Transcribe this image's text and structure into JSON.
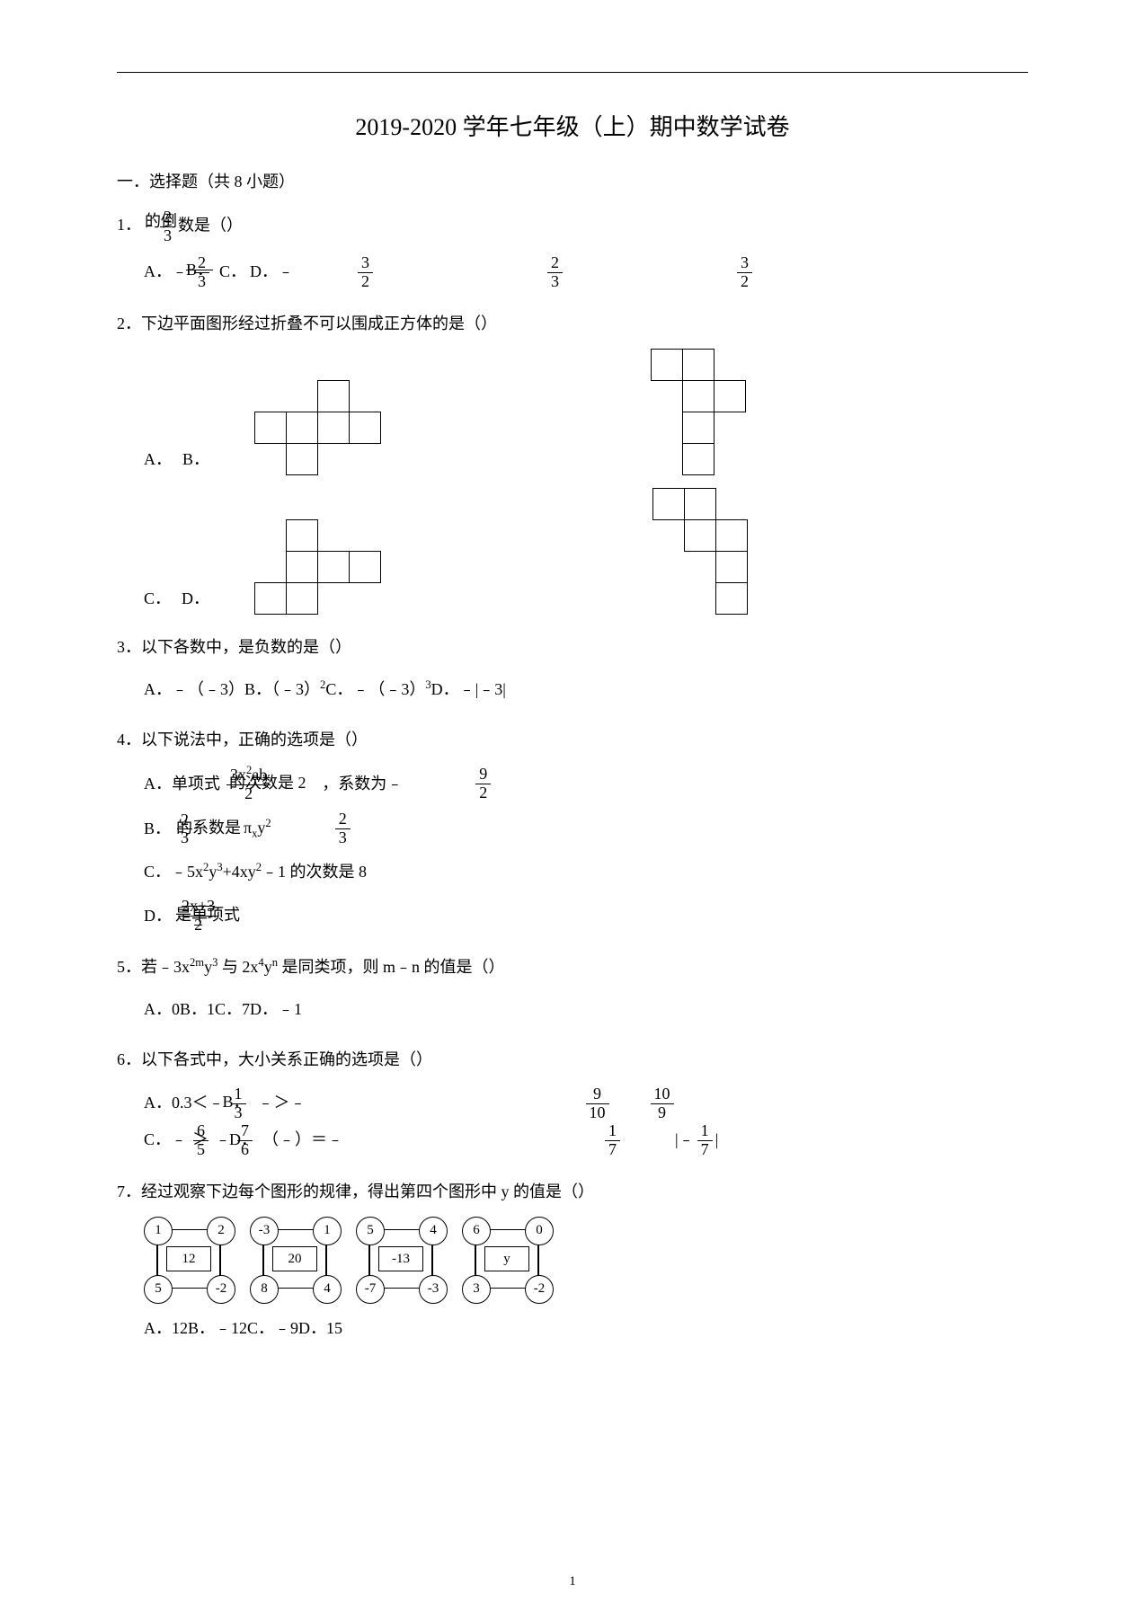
{
  "title": "2019-2020 学年七年级（上）期中数学试卷",
  "section1": "一．选择题（共 8 小题）",
  "page_number": "1",
  "q1": {
    "stem_pre": "1．﹣",
    "stem_frac_num": "2",
    "stem_frac_den": "3",
    "stem_post": "的倒数是（）",
    "optA_pre": "A．﹣",
    "optA_num": "2",
    "optA_den": "3",
    "optB": "B．",
    "optC": "C．",
    "optD": "D．﹣",
    "frac2_num": "3",
    "frac2_den": "2",
    "frac3_num": "2",
    "frac3_den": "3",
    "frac4_num": "3",
    "frac4_den": "2"
  },
  "q2": {
    "stem": "2．下边平面图形经过折叠不可以围成正方体的是（）",
    "labA": "A．",
    "labB": "B．",
    "labC": "C．",
    "labD": "D．",
    "netA": [
      [
        0,
        0,
        1,
        0
      ],
      [
        1,
        1,
        1,
        1
      ],
      [
        0,
        1,
        0,
        0
      ]
    ],
    "netB": [
      [
        1,
        1,
        0
      ],
      [
        0,
        1,
        1
      ],
      [
        0,
        1,
        0
      ],
      [
        0,
        1,
        0
      ]
    ],
    "netC": [
      [
        0,
        1,
        0,
        0
      ],
      [
        0,
        1,
        1,
        1
      ],
      [
        1,
        1,
        0,
        0
      ]
    ],
    "netD": [
      [
        1,
        1,
        0
      ],
      [
        0,
        1,
        1
      ],
      [
        0,
        0,
        1
      ],
      [
        0,
        0,
        1
      ]
    ]
  },
  "q3": {
    "stem": "3．以下各数中，是负数的是（）",
    "opts": "A．﹣（﹣3）B．（﹣3）²C．﹣（﹣3）³D．﹣|﹣3|"
  },
  "q4": {
    "stem": "4．以下说法中，正确的选项是（）",
    "A_pre": "A．单项式",
    "A_mid_top": "3x²ab",
    "A_mid_bot": "2",
    "A_overlay": "的次数是 2",
    "A_post": "，系数为﹣",
    "A_frac_num": "9",
    "A_frac_den": "2",
    "B_pre": "B．",
    "B_f1_num": "2",
    "B_f1_den": "3",
    "B_mid": "πxy²",
    "B_overlay": "的系数是",
    "B_f2_num": "2",
    "B_f2_den": "3",
    "C": "C．﹣5x²y³+4xy²﹣1 的次数是 8",
    "D_pre": "D．",
    "D_top": "2x+3",
    "D_bot": "2",
    "D_overlay": "是单项式"
  },
  "q5": {
    "stem": "5．若﹣3x²ᵐy³ 与 2x⁴yⁿ 是同类项，则 m﹣n 的值是（）",
    "opts": "A．0B．1C．7D．﹣1"
  },
  "q6": {
    "stem": "6．以下各式中，大小关系正确的选项是（）",
    "A_pre": "A．0.3＜﹣",
    "A_num": "1",
    "A_den": "3",
    "B_pre": "B．",
    "B_mid": "﹣＞﹣",
    "B_f1_num": "9",
    "B_f1_den": "10",
    "B_f2_num": "10",
    "B_f2_den": "9",
    "C_pre": "C．﹣",
    "C_f1_num": "6",
    "C_f1_den": "5",
    "C_mid": "＞﹣",
    "C_f2_num": "7",
    "C_f2_den": "6",
    "D_pre": "D．",
    "D_mid": "（﹣）＝﹣",
    "D_f1_num": "1",
    "D_f1_den": "7",
    "D_abs_pre": "|﹣",
    "D_abs_num": "1",
    "D_abs_den": "7",
    "D_abs_post": "|"
  },
  "q7": {
    "stem": "7．经过观察下边每个图形的规律，得出第四个图形中 y 的值是（）",
    "graphs": [
      {
        "tl": "1",
        "tr": "2",
        "bl": "5",
        "br": "-2",
        "mid": "12"
      },
      {
        "tl": "-3",
        "tr": "1",
        "bl": "8",
        "br": "4",
        "mid": "20"
      },
      {
        "tl": "5",
        "tr": "4",
        "bl": "-7",
        "br": "-3",
        "mid": "-13"
      },
      {
        "tl": "6",
        "tr": "0",
        "bl": "3",
        "br": "-2",
        "mid": "y"
      }
    ],
    "opts": "A．12B．﹣12C．﹣9D．15"
  }
}
